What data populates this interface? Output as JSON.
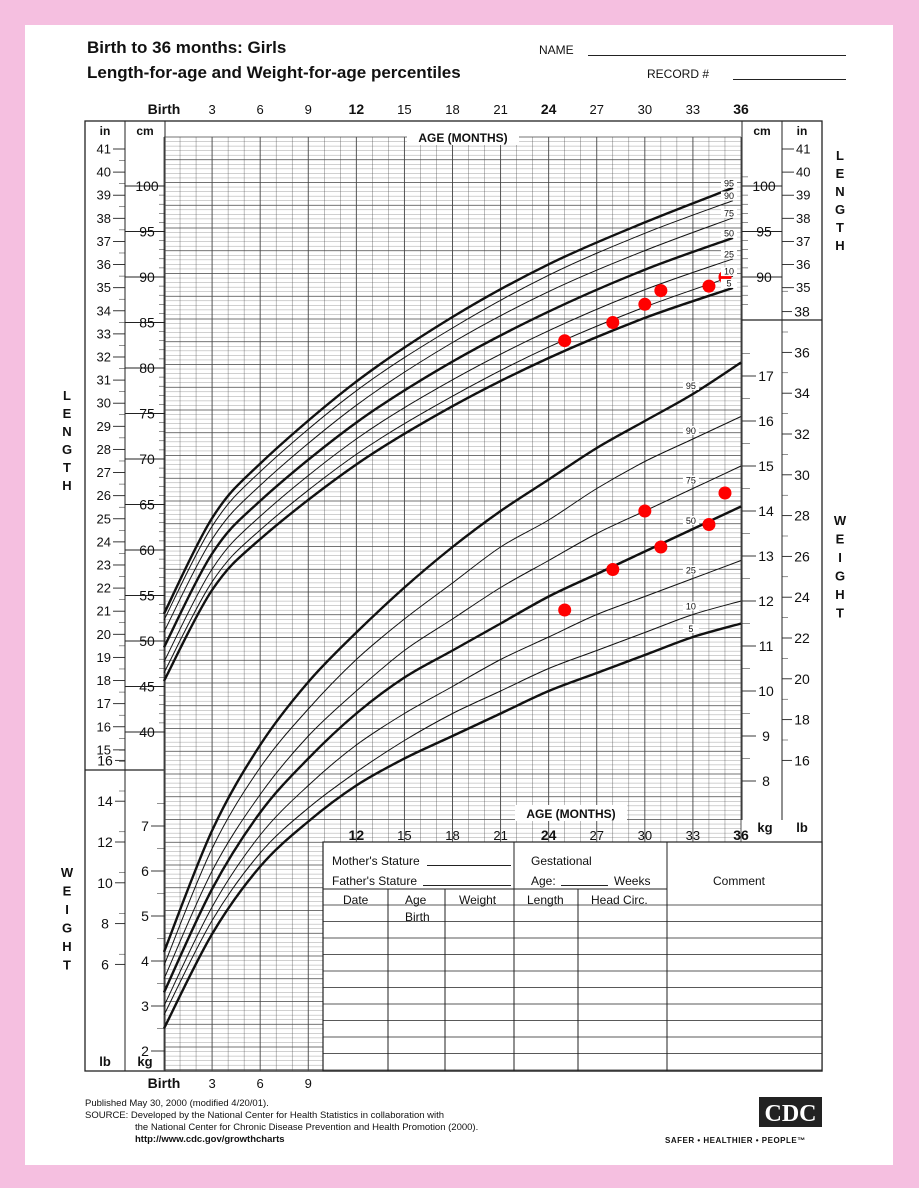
{
  "title": {
    "line1": "Birth to 36 months: Girls",
    "line2": "Length-for-age and Weight-for-age percentiles"
  },
  "fields": {
    "name_label": "NAME",
    "record_label": "RECORD #"
  },
  "axis": {
    "age_label": "AGE (MONTHS)",
    "age_ticks_top": [
      "Birth",
      "3",
      "6",
      "9",
      "12",
      "15",
      "18",
      "21",
      "24",
      "27",
      "30",
      "33",
      "36"
    ],
    "age_ticks_weight_top": [
      "12",
      "15",
      "18",
      "21",
      "24",
      "27",
      "30",
      "33",
      "36"
    ],
    "age_ticks_bottom": [
      "Birth",
      "3",
      "6",
      "9"
    ],
    "unit_in": "in",
    "unit_cm": "cm",
    "unit_lb": "lb",
    "unit_kg": "kg",
    "length_side_label": "LENGTH",
    "weight_side_label": "WEIGHT"
  },
  "form": {
    "mother_stature": "Mother's Stature",
    "father_stature": "Father's Stature",
    "gestational": "Gestational",
    "age": "Age:",
    "weeks": "Weeks",
    "comment": "Comment",
    "col_date": "Date",
    "col_age": "Age",
    "col_weight": "Weight",
    "col_length": "Length",
    "col_head": "Head  Circ.",
    "row_birth": "Birth"
  },
  "footer": {
    "published": "Published May 30, 2000 (modified 4/20/01).",
    "source1": "SOURCE: Developed by the National Center for Health Statistics in collaboration with",
    "source2": "the National Center for Chronic Disease Prevention and Health Promotion (2000).",
    "url": "http://www.cdc.gov/growthcharts",
    "logo_text": "CDC",
    "slogan": "SAFER • HEALTHIER • PEOPLE™"
  },
  "colors": {
    "border": "#f5bfe0",
    "grid": "#333333",
    "marker": "#ff0000"
  },
  "chart_data": [
    {
      "type": "line",
      "name": "length-for-age",
      "x_unit": "months",
      "y_unit": "cm",
      "xlim": [
        0,
        36
      ],
      "ylim_cm": [
        39,
        102
      ],
      "ylim_in": [
        15,
        41
      ],
      "curves": [
        {
          "name": "95",
          "points": [
            [
              0,
              53.0
            ],
            [
              3,
              63.5
            ],
            [
              6,
              69.5
            ],
            [
              12,
              78.5
            ],
            [
              18,
              85.6
            ],
            [
              24,
              91.4
            ],
            [
              30,
              96.0
            ],
            [
              35.5,
              99.8
            ]
          ]
        },
        {
          "name": "90",
          "points": [
            [
              0,
              52.3
            ],
            [
              3,
              62.6
            ],
            [
              6,
              68.6
            ],
            [
              12,
              77.5
            ],
            [
              18,
              84.4
            ],
            [
              24,
              90.2
            ],
            [
              30,
              94.8
            ],
            [
              35.5,
              98.4
            ]
          ]
        },
        {
          "name": "75",
          "points": [
            [
              0,
              51.0
            ],
            [
              3,
              61.2
            ],
            [
              6,
              67.1
            ],
            [
              12,
              75.9
            ],
            [
              18,
              82.8
            ],
            [
              24,
              88.4
            ],
            [
              30,
              92.9
            ],
            [
              35.5,
              96.5
            ]
          ]
        },
        {
          "name": "50",
          "points": [
            [
              0,
              49.3
            ],
            [
              3,
              59.6
            ],
            [
              6,
              65.4
            ],
            [
              12,
              74.0
            ],
            [
              18,
              80.7
            ],
            [
              24,
              86.2
            ],
            [
              30,
              90.8
            ],
            [
              35.5,
              94.3
            ]
          ]
        },
        {
          "name": "25",
          "points": [
            [
              0,
              47.7
            ],
            [
              3,
              57.9
            ],
            [
              6,
              63.7
            ],
            [
              12,
              72.2
            ],
            [
              18,
              78.7
            ],
            [
              24,
              84.1
            ],
            [
              30,
              88.6
            ],
            [
              35.5,
              92.0
            ]
          ]
        },
        {
          "name": "10",
          "points": [
            [
              0,
              46.5
            ],
            [
              3,
              56.5
            ],
            [
              6,
              62.2
            ],
            [
              12,
              70.5
            ],
            [
              18,
              76.9
            ],
            [
              24,
              82.3
            ],
            [
              30,
              86.7
            ],
            [
              35.5,
              90.1
            ]
          ]
        },
        {
          "name": "5",
          "points": [
            [
              0,
              45.6
            ],
            [
              3,
              55.6
            ],
            [
              6,
              61.2
            ],
            [
              12,
              69.4
            ],
            [
              18,
              75.8
            ],
            [
              24,
              81.1
            ],
            [
              30,
              85.5
            ],
            [
              35.5,
              88.8
            ]
          ]
        }
      ],
      "measurements": [
        {
          "age": 25,
          "value": 83.0
        },
        {
          "age": 28,
          "value": 85.0
        },
        {
          "age": 30,
          "value": 87.0
        },
        {
          "age": 31,
          "value": 88.5
        },
        {
          "age": 34,
          "value": 89.0
        },
        {
          "age": 35,
          "value": 90.0
        }
      ]
    },
    {
      "type": "line",
      "name": "weight-for-age",
      "x_unit": "months",
      "y_unit": "kg",
      "xlim": [
        0,
        36
      ],
      "ylim_kg": [
        1.5,
        17.5
      ],
      "ylim_lb": [
        15,
        39
      ],
      "curves": [
        {
          "name": "95",
          "points": [
            [
              0,
              4.2
            ],
            [
              3,
              6.9
            ],
            [
              6,
              8.8
            ],
            [
              9,
              10.2
            ],
            [
              12,
              11.3
            ],
            [
              15,
              12.3
            ],
            [
              18,
              13.2
            ],
            [
              21,
              14.0
            ],
            [
              24,
              14.7
            ],
            [
              27,
              15.4
            ],
            [
              30,
              16.0
            ],
            [
              33,
              16.6
            ],
            [
              36,
              17.3
            ]
          ]
        },
        {
          "name": "90",
          "points": [
            [
              0,
              3.9
            ],
            [
              3,
              6.5
            ],
            [
              6,
              8.3
            ],
            [
              9,
              9.6
            ],
            [
              12,
              10.7
            ],
            [
              15,
              11.6
            ],
            [
              18,
              12.4
            ],
            [
              21,
              13.2
            ],
            [
              24,
              13.8
            ],
            [
              27,
              14.5
            ],
            [
              30,
              15.1
            ],
            [
              33,
              15.6
            ],
            [
              36,
              16.1
            ]
          ]
        },
        {
          "name": "75",
          "points": [
            [
              0,
              3.6
            ],
            [
              3,
              6.0
            ],
            [
              6,
              7.7
            ],
            [
              9,
              9.0
            ],
            [
              12,
              10.0
            ],
            [
              15,
              10.9
            ],
            [
              18,
              11.6
            ],
            [
              21,
              12.3
            ],
            [
              24,
              12.9
            ],
            [
              27,
              13.5
            ],
            [
              30,
              14.0
            ],
            [
              33,
              14.5
            ],
            [
              36,
              15.0
            ]
          ]
        },
        {
          "name": "50",
          "points": [
            [
              0,
              3.3
            ],
            [
              3,
              5.6
            ],
            [
              6,
              7.3
            ],
            [
              9,
              8.5
            ],
            [
              12,
              9.5
            ],
            [
              15,
              10.3
            ],
            [
              18,
              10.9
            ],
            [
              21,
              11.5
            ],
            [
              24,
              12.1
            ],
            [
              27,
              12.6
            ],
            [
              30,
              13.1
            ],
            [
              33,
              13.6
            ],
            [
              36,
              14.1
            ]
          ]
        },
        {
          "name": "25",
          "points": [
            [
              0,
              3.0
            ],
            [
              3,
              5.2
            ],
            [
              6,
              6.8
            ],
            [
              9,
              7.9
            ],
            [
              12,
              8.8
            ],
            [
              15,
              9.5
            ],
            [
              18,
              10.1
            ],
            [
              21,
              10.7
            ],
            [
              24,
              11.2
            ],
            [
              27,
              11.7
            ],
            [
              30,
              12.1
            ],
            [
              33,
              12.5
            ],
            [
              36,
              12.9
            ]
          ]
        },
        {
          "name": "10",
          "points": [
            [
              0,
              2.8
            ],
            [
              3,
              4.9
            ],
            [
              6,
              6.4
            ],
            [
              9,
              7.4
            ],
            [
              12,
              8.2
            ],
            [
              15,
              8.9
            ],
            [
              18,
              9.5
            ],
            [
              21,
              10.0
            ],
            [
              24,
              10.5
            ],
            [
              27,
              10.9
            ],
            [
              30,
              11.3
            ],
            [
              33,
              11.7
            ],
            [
              36,
              12.0
            ]
          ]
        },
        {
          "name": "5",
          "points": [
            [
              0,
              2.5
            ],
            [
              3,
              4.6
            ],
            [
              6,
              6.1
            ],
            [
              9,
              7.1
            ],
            [
              12,
              7.9
            ],
            [
              15,
              8.5
            ],
            [
              18,
              9.0
            ],
            [
              21,
              9.5
            ],
            [
              24,
              10.0
            ],
            [
              27,
              10.4
            ],
            [
              30,
              10.8
            ],
            [
              33,
              11.2
            ],
            [
              36,
              11.5
            ]
          ]
        }
      ],
      "measurements": [
        {
          "age": 25,
          "value": 11.8
        },
        {
          "age": 28,
          "value": 12.7
        },
        {
          "age": 30,
          "value": 14.0
        },
        {
          "age": 31,
          "value": 13.2
        },
        {
          "age": 34,
          "value": 13.7
        },
        {
          "age": 35,
          "value": 14.4
        }
      ]
    }
  ]
}
